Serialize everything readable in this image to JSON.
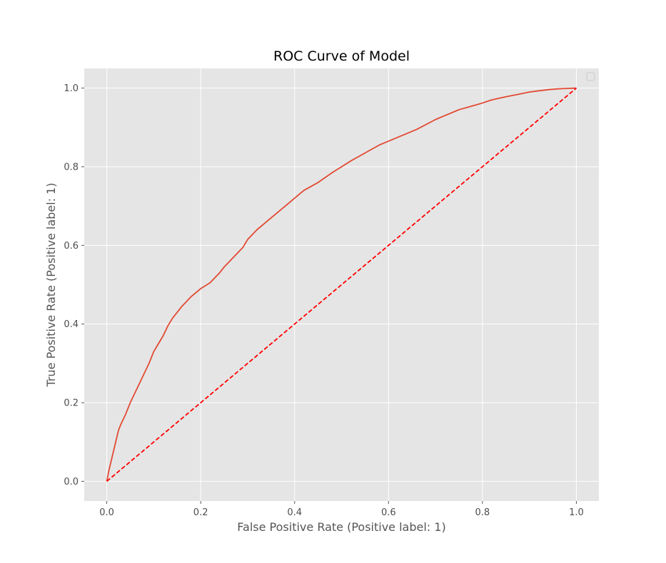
{
  "chart_data": {
    "type": "line",
    "title": "ROC Curve of Model",
    "xlabel": "False Positive Rate (Positive label: 1)",
    "ylabel": "True Positive Rate (Positive label: 1)",
    "xlim": [
      -0.048,
      1.048
    ],
    "ylim": [
      -0.05,
      1.05
    ],
    "x_ticks": [
      "0.0",
      "0.2",
      "0.4",
      "0.6",
      "0.8",
      "1.0"
    ],
    "y_ticks": [
      "0.0",
      "0.2",
      "0.4",
      "0.6",
      "0.8",
      "1.0"
    ],
    "grid": true,
    "legend": {
      "placement": "top-right",
      "entries": []
    },
    "series": [
      {
        "style": "solid",
        "color": "#e24a33",
        "x": [
          0.0,
          0.005,
          0.01,
          0.015,
          0.02,
          0.025,
          0.03,
          0.04,
          0.05,
          0.06,
          0.07,
          0.08,
          0.09,
          0.1,
          0.11,
          0.12,
          0.13,
          0.14,
          0.15,
          0.16,
          0.18,
          0.2,
          0.22,
          0.24,
          0.25,
          0.27,
          0.29,
          0.3,
          0.32,
          0.34,
          0.36,
          0.38,
          0.4,
          0.42,
          0.45,
          0.48,
          0.5,
          0.52,
          0.55,
          0.58,
          0.6,
          0.63,
          0.66,
          0.7,
          0.72,
          0.75,
          0.78,
          0.8,
          0.82,
          0.85,
          0.88,
          0.9,
          0.92,
          0.94,
          0.96,
          0.98,
          1.0
        ],
        "y": [
          0.0,
          0.03,
          0.055,
          0.08,
          0.105,
          0.13,
          0.145,
          0.17,
          0.2,
          0.225,
          0.25,
          0.275,
          0.3,
          0.33,
          0.35,
          0.37,
          0.395,
          0.415,
          0.43,
          0.445,
          0.47,
          0.49,
          0.505,
          0.53,
          0.545,
          0.57,
          0.595,
          0.615,
          0.64,
          0.66,
          0.68,
          0.7,
          0.72,
          0.74,
          0.76,
          0.785,
          0.8,
          0.815,
          0.835,
          0.855,
          0.865,
          0.88,
          0.895,
          0.92,
          0.93,
          0.945,
          0.955,
          0.962,
          0.97,
          0.978,
          0.985,
          0.99,
          0.993,
          0.996,
          0.998,
          0.999,
          1.0
        ]
      },
      {
        "style": "dashed",
        "color": "#ff0000",
        "x": [
          0.0,
          1.0
        ],
        "y": [
          0.0,
          1.0
        ]
      }
    ]
  }
}
